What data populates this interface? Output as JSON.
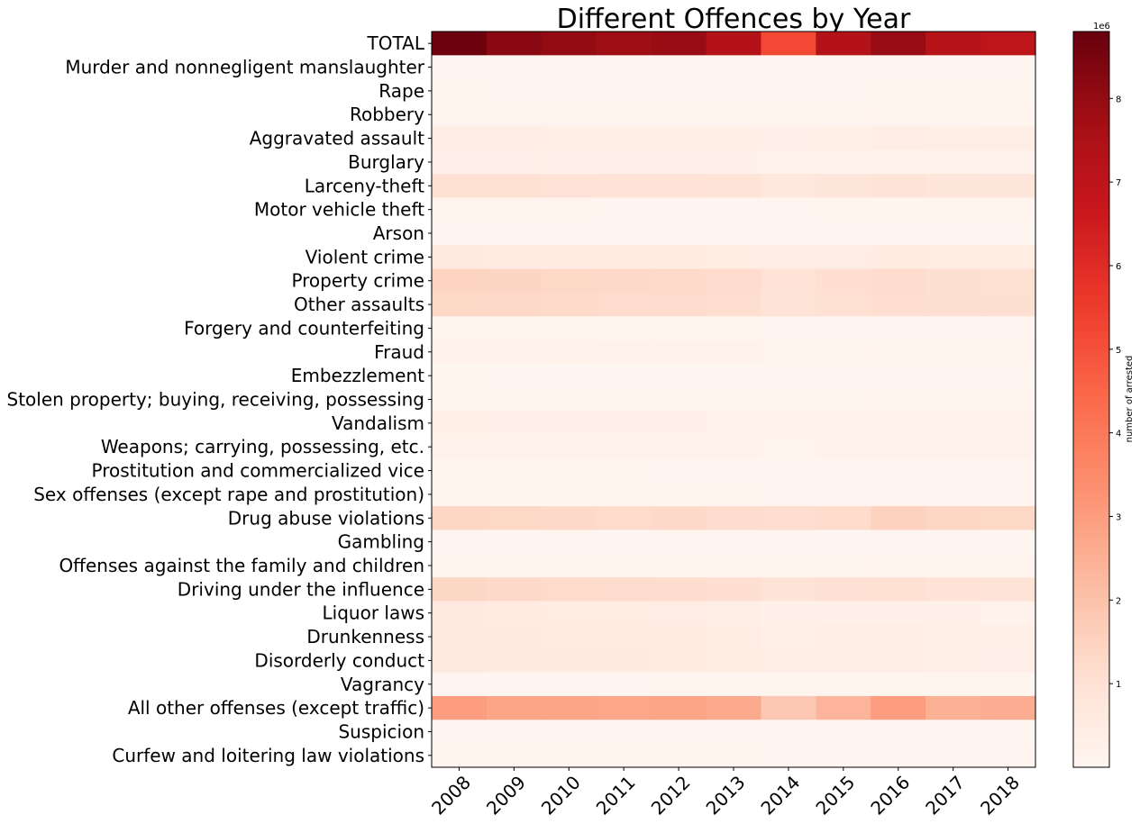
{
  "chart_data": {
    "type": "heatmap",
    "title": "Different Offences by Year",
    "colormap": "Reds",
    "x": [
      "2008",
      "2009",
      "2010",
      "2011",
      "2012",
      "2013",
      "2014",
      "2015",
      "2016",
      "2017",
      "2018"
    ],
    "y": [
      "TOTAL",
      "Murder and nonnegligent manslaughter",
      "Rape",
      "Robbery",
      "Aggravated assault",
      "Burglary",
      "Larceny-theft",
      "Motor vehicle theft",
      "Arson",
      "Violent crime",
      "Property crime",
      "Other assaults",
      "Forgery and counterfeiting",
      "Fraud",
      "Embezzlement",
      "Stolen property; buying, receiving, possessing",
      "Vandalism",
      "Weapons; carrying, possessing, etc.",
      "Prostitution and commercialized vice",
      "Sex offenses (except rape and prostitution)",
      "Drug abuse violations",
      "Gambling",
      "Offenses against the family and children",
      "Driving under the influence",
      "Liquor laws",
      "Drunkenness",
      "Disorderly conduct",
      "Vagrancy",
      "All other offenses (except traffic)",
      "Suspicion",
      "Curfew and loitering law violations"
    ],
    "values": [
      [
        8700000,
        8200000,
        8000000,
        7800000,
        7900000,
        7300000,
        5200000,
        7300000,
        7900000,
        7200000,
        7000000
      ],
      [
        10000,
        10000,
        9000,
        8500,
        8300,
        8000,
        6000,
        8000,
        9000,
        9000,
        9000
      ],
      [
        19000,
        18000,
        17000,
        15000,
        15000,
        15000,
        15000,
        17000,
        20000,
        20000,
        20000
      ],
      [
        120000,
        112000,
        105000,
        100000,
        96000,
        90000,
        70000,
        80000,
        85000,
        80000,
        75000
      ],
      [
        420000,
        400000,
        380000,
        360000,
        370000,
        350000,
        290000,
        340000,
        400000,
        380000,
        380000
      ],
      [
        300000,
        290000,
        270000,
        260000,
        250000,
        230000,
        160000,
        190000,
        200000,
        170000,
        150000
      ],
      [
        1050000,
        1060000,
        1000000,
        950000,
        950000,
        900000,
        730000,
        840000,
        900000,
        800000,
        780000
      ],
      [
        80000,
        70000,
        60000,
        55000,
        55000,
        55000,
        45000,
        60000,
        70000,
        70000,
        70000
      ],
      [
        12000,
        11000,
        10000,
        9000,
        9000,
        8000,
        6000,
        7000,
        8000,
        8000,
        8000
      ],
      [
        580000,
        550000,
        520000,
        500000,
        500000,
        480000,
        400000,
        450000,
        500000,
        490000,
        490000
      ],
      [
        1450000,
        1420000,
        1350000,
        1300000,
        1280000,
        1200000,
        950000,
        1120000,
        1200000,
        1100000,
        1050000
      ],
      [
        1350000,
        1300000,
        1270000,
        1240000,
        1220000,
        1160000,
        900000,
        1070000,
        1150000,
        1100000,
        1080000
      ],
      [
        80000,
        78000,
        73000,
        70000,
        67000,
        60000,
        45000,
        50000,
        52000,
        46000,
        40000
      ],
      [
        200000,
        190000,
        170000,
        160000,
        150000,
        145000,
        110000,
        120000,
        110000,
        105000,
        100000
      ],
      [
        20000,
        18000,
        17000,
        16000,
        16000,
        16000,
        12000,
        13000,
        14000,
        14000,
        14000
      ],
      [
        100000,
        95000,
        90000,
        90000,
        90000,
        85000,
        70000,
        80000,
        90000,
        80000,
        78000
      ],
      [
        280000,
        260000,
        240000,
        220000,
        215000,
        200000,
        160000,
        170000,
        180000,
        170000,
        160000
      ],
      [
        180000,
        170000,
        160000,
        155000,
        150000,
        145000,
        120000,
        140000,
        165000,
        160000,
        150000
      ],
      [
        70000,
        68000,
        62000,
        57000,
        53000,
        47000,
        34000,
        38000,
        32000,
        30000,
        27000
      ],
      [
        75000,
        73000,
        70000,
        68000,
        65000,
        60000,
        45000,
        50000,
        55000,
        48000,
        45000
      ],
      [
        1400000,
        1350000,
        1300000,
        1250000,
        1300000,
        1200000,
        1150000,
        1250000,
        1500000,
        1400000,
        1350000
      ],
      [
        8000,
        8000,
        7000,
        6500,
        6500,
        6000,
        5000,
        5000,
        4000,
        3500,
        3000
      ],
      [
        100000,
        98000,
        95000,
        90000,
        90000,
        88000,
        70000,
        80000,
        90000,
        85000,
        85000
      ],
      [
        1380000,
        1300000,
        1250000,
        1220000,
        1200000,
        1120000,
        900000,
        1030000,
        1050000,
        950000,
        920000
      ],
      [
        570000,
        520000,
        480000,
        440000,
        420000,
        360000,
        240000,
        260000,
        250000,
        220000,
        200000
      ],
      [
        580000,
        560000,
        550000,
        530000,
        520000,
        480000,
        330000,
        380000,
        380000,
        330000,
        330000
      ],
      [
        640000,
        600000,
        580000,
        560000,
        540000,
        480000,
        350000,
        390000,
        360000,
        320000,
        310000
      ],
      [
        32000,
        30000,
        28000,
        27000,
        25000,
        25000,
        20000,
        25000,
        26000,
        24000,
        24000
      ],
      [
        3000000,
        2800000,
        2800000,
        2750000,
        2800000,
        2650000,
        1800000,
        2350000,
        3000000,
        2500000,
        2600000
      ],
      [
        1500,
        1400,
        1300,
        1300,
        1200,
        1100,
        1000,
        1000,
        1000,
        900,
        900
      ],
      [
        110000,
        100000,
        95000,
        80000,
        75000,
        60000,
        40000,
        45000,
        35000,
        30000,
        30000
      ]
    ],
    "colorbar": {
      "label": "number of arrested",
      "multiplier": "1e6",
      "range": [
        0,
        8800000
      ],
      "ticks": [
        1,
        2,
        3,
        4,
        5,
        6,
        7,
        8
      ]
    }
  }
}
